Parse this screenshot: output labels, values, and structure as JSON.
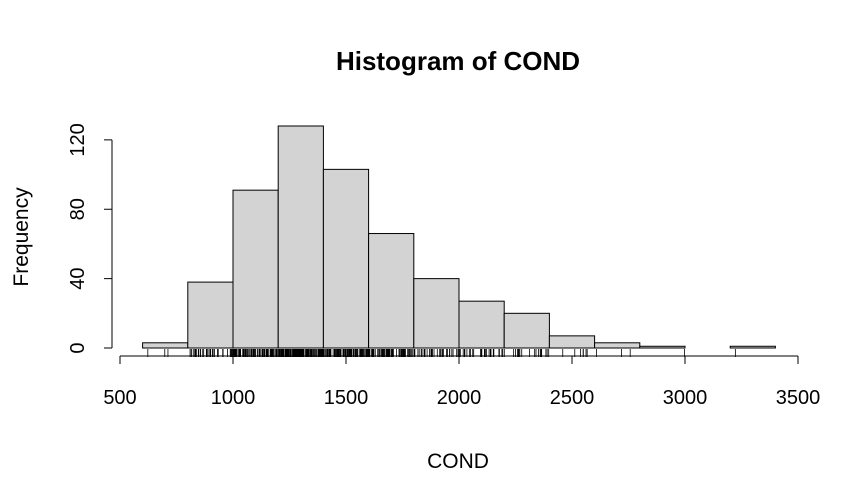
{
  "chart_data": {
    "type": "bar",
    "title": "Histogram of COND",
    "xlabel": "COND",
    "ylabel": "Frequency",
    "bins": [
      {
        "start": 600,
        "end": 800,
        "count": 3
      },
      {
        "start": 800,
        "end": 1000,
        "count": 38
      },
      {
        "start": 1000,
        "end": 1200,
        "count": 91
      },
      {
        "start": 1200,
        "end": 1400,
        "count": 128
      },
      {
        "start": 1400,
        "end": 1600,
        "count": 103
      },
      {
        "start": 1600,
        "end": 1800,
        "count": 66
      },
      {
        "start": 1800,
        "end": 2000,
        "count": 40
      },
      {
        "start": 2000,
        "end": 2200,
        "count": 27
      },
      {
        "start": 2200,
        "end": 2400,
        "count": 20
      },
      {
        "start": 2400,
        "end": 2600,
        "count": 7
      },
      {
        "start": 2600,
        "end": 2800,
        "count": 3
      },
      {
        "start": 2800,
        "end": 3000,
        "count": 1
      },
      {
        "start": 3000,
        "end": 3200,
        "count": 0
      },
      {
        "start": 3200,
        "end": 3400,
        "count": 1
      }
    ],
    "xlim": [
      500,
      3500
    ],
    "ylim": [
      0,
      128
    ],
    "x_ticks": [
      "500",
      "1000",
      "1500",
      "2000",
      "2500",
      "3000",
      "3500"
    ],
    "y_ticks": [
      "0",
      "40",
      "80",
      "120"
    ],
    "rug": true,
    "bar_color": "#d3d3d3",
    "grid": false,
    "legend": "none"
  }
}
